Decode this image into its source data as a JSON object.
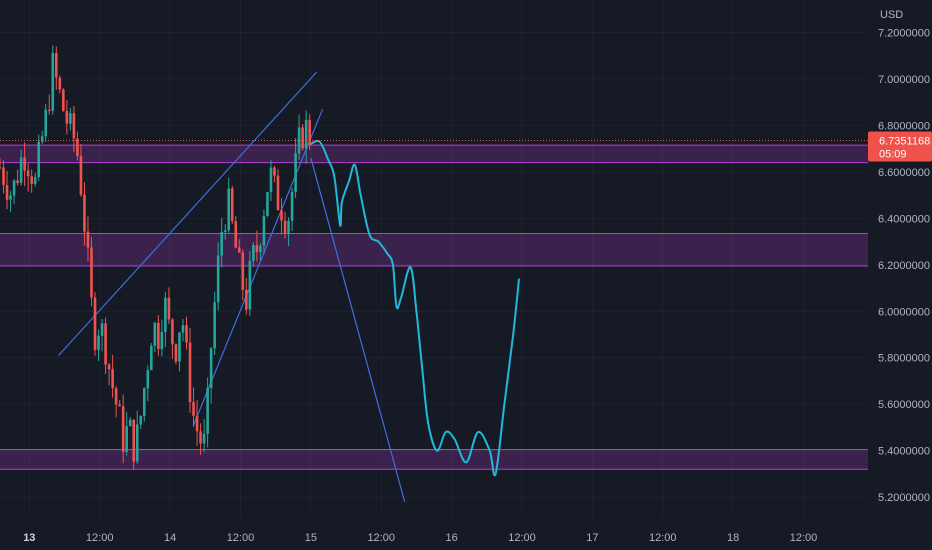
{
  "chart_data": {
    "type": "candlestick",
    "currency_label": "USD",
    "y_ticks": [
      "7.2000000",
      "7.0000000",
      "6.8000000",
      "6.6000000",
      "6.4000000",
      "6.2000000",
      "6.0000000",
      "5.8000000",
      "5.6000000",
      "5.4000000",
      "5.2000000"
    ],
    "y_tick_values": [
      7.2,
      7.0,
      6.8,
      6.6,
      6.4,
      6.2,
      6.0,
      5.8,
      5.6,
      5.4,
      5.2
    ],
    "ylim": [
      5.11,
      7.34
    ],
    "x_ticks": [
      {
        "label": "13",
        "t": 0,
        "bold": true
      },
      {
        "label": "12:00",
        "t": 12,
        "bold": false
      },
      {
        "label": "14",
        "t": 24,
        "bold": false
      },
      {
        "label": "12:00",
        "t": 36,
        "bold": false
      },
      {
        "label": "15",
        "t": 48,
        "bold": false
      },
      {
        "label": "12:00",
        "t": 60,
        "bold": false
      },
      {
        "label": "16",
        "t": 72,
        "bold": false
      },
      {
        "label": "12:00",
        "t": 84,
        "bold": false
      },
      {
        "label": "17",
        "t": 96,
        "bold": false
      },
      {
        "label": "12:00",
        "t": 108,
        "bold": false
      },
      {
        "label": "18",
        "t": 120,
        "bold": false
      },
      {
        "label": "12:00",
        "t": 132,
        "bold": false
      }
    ],
    "xlim": [
      -5,
      143
    ],
    "current_price": "6.7351168",
    "countdown": "05:09",
    "current_value": 6.7351,
    "colors": {
      "background": "#161a25",
      "up": "#26a69a",
      "down": "#ef5350",
      "zone_fill": "#5b2a6e",
      "zone_line": "#b63cd6",
      "trendline": "#3d6fe0",
      "projection": "#22b8d8",
      "price_tag": "#f0514a",
      "text": "#b2b5be"
    },
    "zones": [
      {
        "top": 6.715,
        "bottom": 6.64
      },
      {
        "top": 6.335,
        "bottom": 6.195
      },
      {
        "top": 5.405,
        "bottom": 5.32
      }
    ],
    "key_points": [
      [
        -5,
        6.62
      ],
      [
        -3,
        6.5
      ],
      [
        -1,
        6.69
      ],
      [
        0,
        6.63
      ],
      [
        1,
        6.55
      ],
      [
        2,
        6.72
      ],
      [
        3,
        6.85
      ],
      [
        4,
        7.05
      ],
      [
        5,
        6.95
      ],
      [
        6,
        6.85
      ],
      [
        7,
        6.78
      ],
      [
        8,
        6.72
      ],
      [
        9,
        6.5
      ],
      [
        10,
        6.2
      ],
      [
        11,
        5.9
      ],
      [
        12,
        5.95
      ],
      [
        13,
        5.85
      ],
      [
        14,
        5.7
      ],
      [
        15,
        5.58
      ],
      [
        16,
        5.45
      ],
      [
        17,
        5.5
      ],
      [
        18,
        5.4
      ],
      [
        19,
        5.55
      ],
      [
        20,
        5.75
      ],
      [
        21,
        5.95
      ],
      [
        22,
        5.9
      ],
      [
        23,
        6.05
      ],
      [
        24,
        5.9
      ],
      [
        25,
        5.85
      ],
      [
        26,
        6.0
      ],
      [
        27,
        5.75
      ],
      [
        28,
        5.55
      ],
      [
        29,
        5.45
      ],
      [
        30,
        5.42
      ],
      [
        31,
        5.85
      ],
      [
        32,
        6.15
      ],
      [
        33,
        6.4
      ],
      [
        34,
        6.45
      ],
      [
        35,
        6.3
      ],
      [
        36,
        6.15
      ],
      [
        37,
        6.05
      ],
      [
        38,
        6.22
      ],
      [
        39,
        6.28
      ],
      [
        40,
        6.45
      ],
      [
        41,
        6.6
      ],
      [
        42,
        6.5
      ],
      [
        43,
        6.45
      ],
      [
        44,
        6.38
      ],
      [
        45,
        6.55
      ],
      [
        46,
        6.72
      ],
      [
        47,
        6.8
      ],
      [
        48,
        6.74
      ]
    ],
    "trendlines": [
      {
        "from": [
          5,
          5.81
        ],
        "to": [
          49,
          7.03
        ]
      },
      {
        "from": [
          28,
          5.51
        ],
        "to": [
          50,
          6.87
        ]
      },
      {
        "from": [
          48,
          6.66
        ],
        "to": [
          64,
          5.18
        ]
      }
    ],
    "projection_path": [
      [
        48,
        6.72
      ],
      [
        49.5,
        6.73
      ],
      [
        51,
        6.65
      ],
      [
        52,
        6.58
      ],
      [
        53,
        6.37
      ],
      [
        53.3,
        6.47
      ],
      [
        54.5,
        6.56
      ],
      [
        55.5,
        6.63
      ],
      [
        56.5,
        6.5
      ],
      [
        58,
        6.33
      ],
      [
        59.5,
        6.3
      ],
      [
        61,
        6.25
      ],
      [
        62,
        6.2
      ],
      [
        62.6,
        6.02
      ],
      [
        63.4,
        6.06
      ],
      [
        65,
        6.19
      ],
      [
        66,
        6.0
      ],
      [
        67,
        5.75
      ],
      [
        68,
        5.52
      ],
      [
        69.5,
        5.4
      ],
      [
        71,
        5.48
      ],
      [
        72.5,
        5.45
      ],
      [
        74.5,
        5.35
      ],
      [
        76.5,
        5.48
      ],
      [
        78.5,
        5.4
      ],
      [
        79.5,
        5.3
      ],
      [
        81,
        5.6
      ],
      [
        82.5,
        5.9
      ],
      [
        83.5,
        6.14
      ]
    ]
  }
}
